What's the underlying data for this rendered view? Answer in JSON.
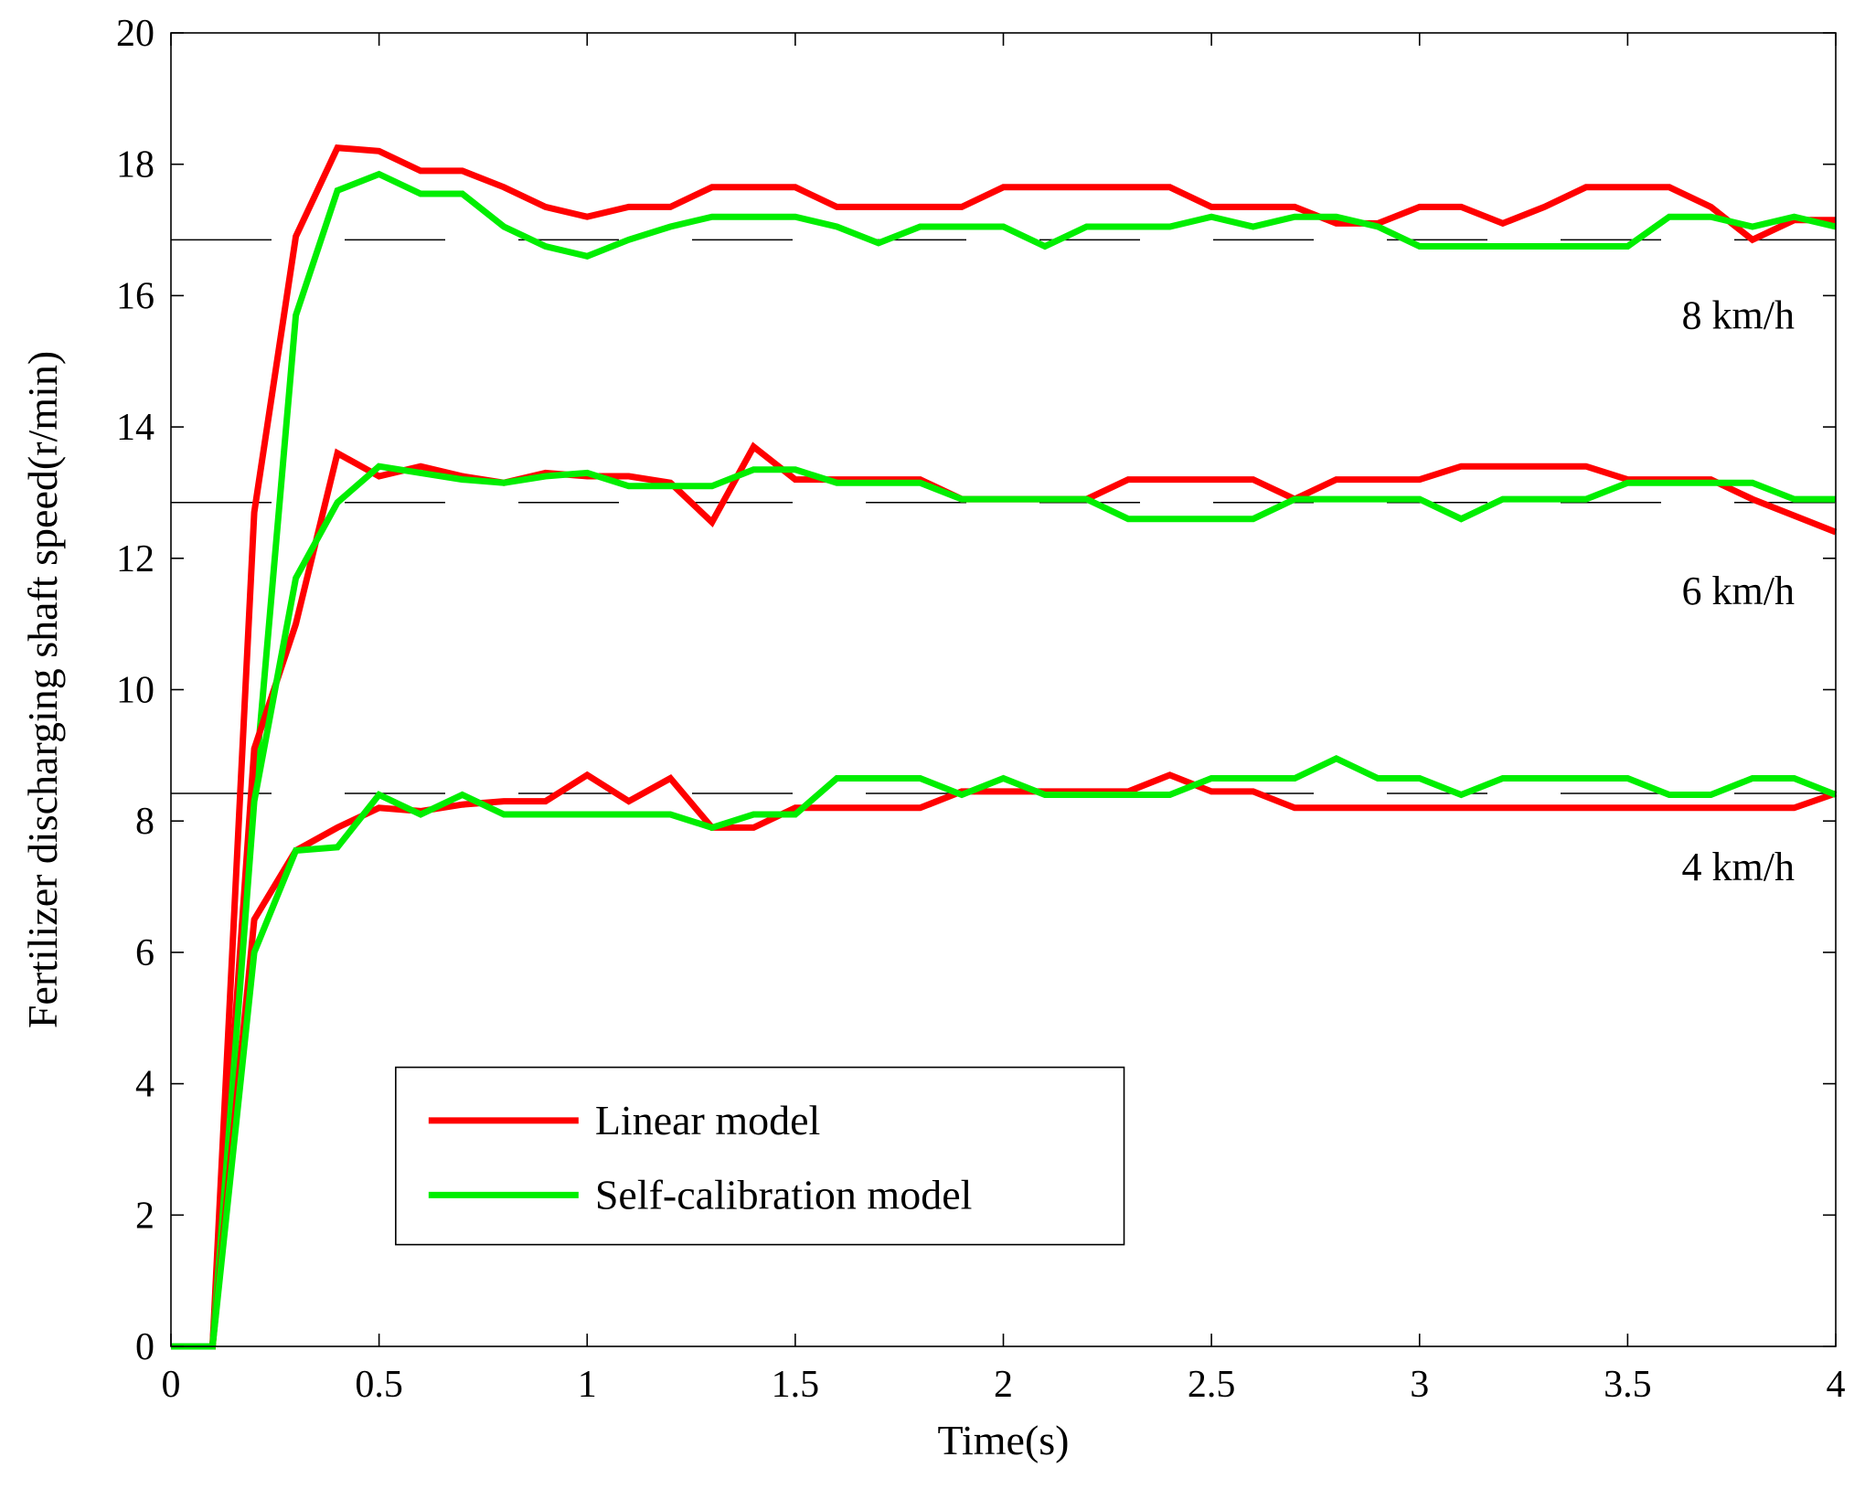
{
  "chart_data": {
    "type": "line",
    "title": "",
    "xlabel": "Time(s)",
    "ylabel": "Fertilizer discharging shaft speed(r/min)",
    "xlim": [
      0,
      4
    ],
    "ylim": [
      0,
      20
    ],
    "xticks": [
      0,
      0.5,
      1,
      1.5,
      2,
      2.5,
      3,
      3.5,
      4
    ],
    "xtick_labels": [
      "0",
      "0.5",
      "1",
      "1.5",
      "2",
      "2.5",
      "3",
      "3.5",
      "4"
    ],
    "yticks": [
      0,
      2,
      4,
      6,
      8,
      10,
      12,
      14,
      16,
      18,
      20
    ],
    "ytick_labels": [
      "0",
      "2",
      "4",
      "6",
      "8",
      "10",
      "12",
      "14",
      "16",
      "18",
      "20"
    ],
    "grid": false,
    "legend_position": "bottom-left",
    "legend": [
      {
        "label": "Linear model",
        "color": "#ff0000"
      },
      {
        "label": "Self-calibration model",
        "color": "#00ee00"
      }
    ],
    "reference_lines": [
      {
        "y": 16.85,
        "style": "dashed"
      },
      {
        "y": 12.85,
        "style": "dashed"
      },
      {
        "y": 8.42,
        "style": "dashed"
      }
    ],
    "annotations": [
      {
        "text": "8 km/h",
        "x": 3.63,
        "y": 15.5
      },
      {
        "text": "6 km/h",
        "x": 3.63,
        "y": 11.3
      },
      {
        "text": "4 km/h",
        "x": 3.63,
        "y": 7.1
      }
    ],
    "x": [
      0,
      0.1,
      0.2,
      0.3,
      0.4,
      0.5,
      0.6,
      0.7,
      0.8,
      0.9,
      1.0,
      1.1,
      1.2,
      1.3,
      1.4,
      1.5,
      1.6,
      1.7,
      1.8,
      1.9,
      2.0,
      2.1,
      2.2,
      2.3,
      2.4,
      2.5,
      2.6,
      2.7,
      2.8,
      2.9,
      3.0,
      3.1,
      3.2,
      3.3,
      3.4,
      3.5,
      3.6,
      3.7,
      3.8,
      3.9,
      4.0
    ],
    "series": [
      {
        "name": "Linear model",
        "group": "8 km/h",
        "color": "#ff0000",
        "values": [
          0,
          0,
          12.7,
          16.9,
          18.25,
          18.2,
          17.9,
          17.9,
          17.65,
          17.35,
          17.2,
          17.35,
          17.35,
          17.65,
          17.65,
          17.65,
          17.35,
          17.35,
          17.35,
          17.35,
          17.65,
          17.65,
          17.65,
          17.65,
          17.65,
          17.35,
          17.35,
          17.35,
          17.1,
          17.1,
          17.35,
          17.35,
          17.1,
          17.35,
          17.65,
          17.65,
          17.65,
          17.35,
          16.85,
          17.15,
          17.15
        ]
      },
      {
        "name": "Self-calibration model",
        "group": "8 km/h",
        "color": "#00ee00",
        "values": [
          0,
          0,
          8.4,
          15.7,
          17.6,
          17.85,
          17.55,
          17.55,
          17.05,
          16.75,
          16.6,
          16.85,
          17.05,
          17.2,
          17.2,
          17.2,
          17.05,
          16.8,
          17.05,
          17.05,
          17.05,
          16.75,
          17.05,
          17.05,
          17.05,
          17.2,
          17.05,
          17.2,
          17.2,
          17.05,
          16.75,
          16.75,
          16.75,
          16.75,
          16.75,
          16.75,
          17.2,
          17.2,
          17.05,
          17.2,
          17.05
        ]
      },
      {
        "name": "Linear model",
        "group": "6 km/h",
        "color": "#ff0000",
        "values": [
          0,
          0,
          9.1,
          11.0,
          13.6,
          13.25,
          13.4,
          13.25,
          13.15,
          13.3,
          13.25,
          13.25,
          13.15,
          12.55,
          13.7,
          13.2,
          13.2,
          13.2,
          13.2,
          12.9,
          12.9,
          12.9,
          12.9,
          13.2,
          13.2,
          13.2,
          13.2,
          12.9,
          13.2,
          13.2,
          13.2,
          13.4,
          13.4,
          13.4,
          13.4,
          13.2,
          13.2,
          13.2,
          12.9,
          12.65,
          12.4
        ]
      },
      {
        "name": "Self-calibration model",
        "group": "6 km/h",
        "color": "#00ee00",
        "values": [
          0,
          0,
          8.3,
          11.7,
          12.85,
          13.4,
          13.3,
          13.2,
          13.15,
          13.25,
          13.3,
          13.1,
          13.1,
          13.1,
          13.35,
          13.35,
          13.15,
          13.15,
          13.15,
          12.9,
          12.9,
          12.9,
          12.9,
          12.6,
          12.6,
          12.6,
          12.6,
          12.9,
          12.9,
          12.9,
          12.9,
          12.6,
          12.9,
          12.9,
          12.9,
          13.15,
          13.15,
          13.15,
          13.15,
          12.9,
          12.9
        ]
      },
      {
        "name": "Linear model",
        "group": "4 km/h",
        "color": "#ff0000",
        "values": [
          0,
          0,
          6.5,
          7.55,
          7.9,
          8.2,
          8.15,
          8.25,
          8.3,
          8.3,
          8.7,
          8.3,
          8.65,
          7.9,
          7.9,
          8.2,
          8.2,
          8.2,
          8.2,
          8.45,
          8.45,
          8.45,
          8.45,
          8.45,
          8.7,
          8.45,
          8.45,
          8.2,
          8.2,
          8.2,
          8.2,
          8.2,
          8.2,
          8.2,
          8.2,
          8.2,
          8.2,
          8.2,
          8.2,
          8.2,
          8.42
        ]
      },
      {
        "name": "Self-calibration model",
        "group": "4 km/h",
        "color": "#00ee00",
        "values": [
          0,
          0,
          6.0,
          7.55,
          7.6,
          8.4,
          8.1,
          8.4,
          8.1,
          8.1,
          8.1,
          8.1,
          8.1,
          7.9,
          8.1,
          8.1,
          8.65,
          8.65,
          8.65,
          8.4,
          8.65,
          8.4,
          8.4,
          8.4,
          8.4,
          8.65,
          8.65,
          8.65,
          8.95,
          8.65,
          8.65,
          8.4,
          8.65,
          8.65,
          8.65,
          8.65,
          8.4,
          8.4,
          8.65,
          8.65,
          8.4
        ]
      }
    ]
  }
}
